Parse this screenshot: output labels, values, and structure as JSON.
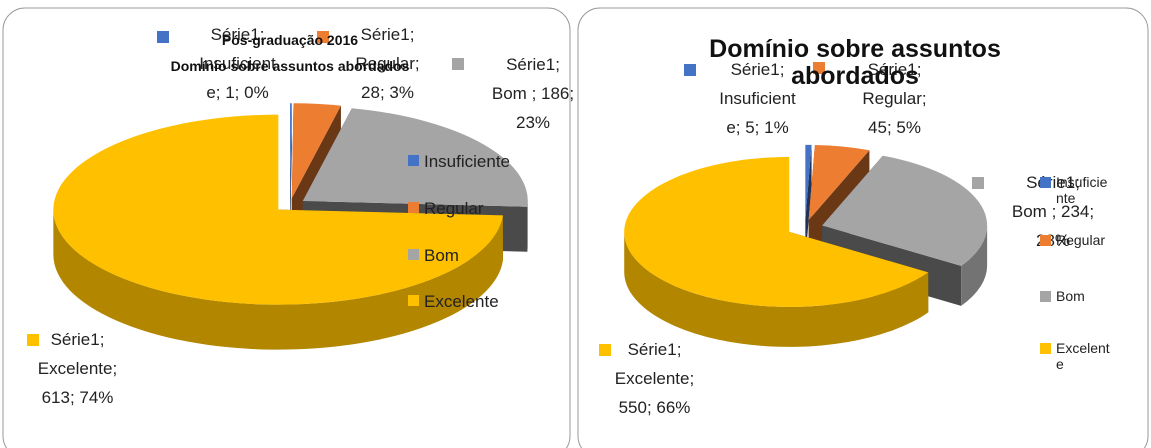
{
  "chart_data": [
    {
      "type": "pie",
      "title": "Pós-graduação 2016",
      "subtitle": "Domínio sobre assuntos abordados",
      "categories": [
        "Insuficiente",
        "Regular",
        "Bom",
        "Excelente"
      ],
      "values": [
        1,
        28,
        186,
        613
      ],
      "value_labels": [
        "Série1; Insuficiente; 1; 0%",
        "Série1; Regular; 28; 3%",
        "Série1; Bom ; 186; 23%",
        "Série1; Excelente; 613; 74%"
      ],
      "colors": [
        "#4472c4",
        "#ed7d31",
        "#a5a5a5",
        "#ffc000"
      ],
      "legend": "right"
    },
    {
      "type": "pie",
      "title": "Domínio sobre assuntos abordados",
      "categories": [
        "Insuficiente",
        "Regular",
        "Bom",
        "Excelente"
      ],
      "values": [
        5,
        45,
        234,
        550
      ],
      "value_labels": [
        "Série1; Insuficiente; 5; 1%",
        "Série1; Regular; 45; 5%",
        "Série1; Bom ; 234; 28%",
        "Série1; Excelente; 550; 66%"
      ],
      "colors": [
        "#4472c4",
        "#ed7d31",
        "#a5a5a5",
        "#ffc000"
      ],
      "legend": "right"
    }
  ]
}
